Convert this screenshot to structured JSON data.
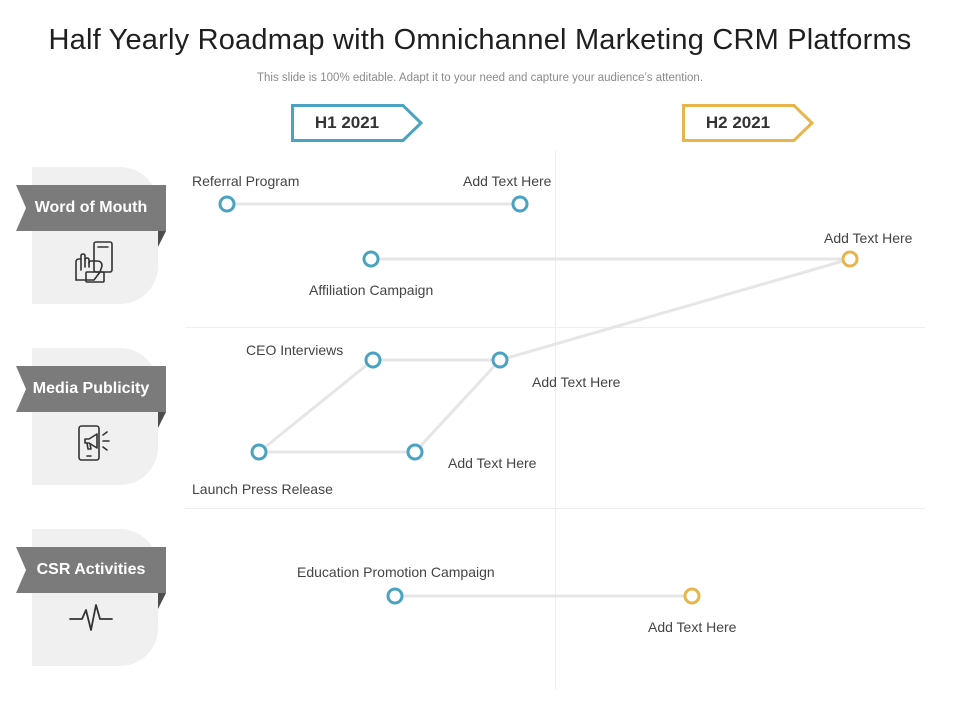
{
  "title": "Half Yearly Roadmap with Omnichannel Marketing CRM Platforms",
  "subtitle": "This slide is 100% editable. Adapt it to your need and capture your audience’s attention.",
  "colors": {
    "teal": "#4aa3c2",
    "gold": "#e8b44c",
    "ribbon": "#7b7b7b",
    "card": "#f0f0f0",
    "line": "#e6e6e6"
  },
  "phases": [
    {
      "label": "H1 2021",
      "color": "#4aa3c2"
    },
    {
      "label": "H2 2021",
      "color": "#e8b44c"
    }
  ],
  "categories": [
    {
      "label": "Word of Mouth",
      "icon": "hand-smartphone-icon"
    },
    {
      "label": "Media Publicity",
      "icon": "phone-megaphone-icon"
    },
    {
      "label": "CSR Activities",
      "icon": "heartbeat-icon"
    }
  ],
  "milestones": {
    "referral_program": "Referral Program",
    "wom_add_text_1": "Add Text Here",
    "wom_add_text_2": "Add Text Here",
    "affiliation_campaign": "Affiliation Campaign",
    "ceo_interviews": "CEO Interviews",
    "media_add_text_1": "Add Text Here",
    "launch_press_release": "Launch Press Release",
    "media_add_text_2": "Add Text Here",
    "education_promotion_campaign": "Education Promotion Campaign",
    "csr_add_text": "Add Text Here"
  }
}
